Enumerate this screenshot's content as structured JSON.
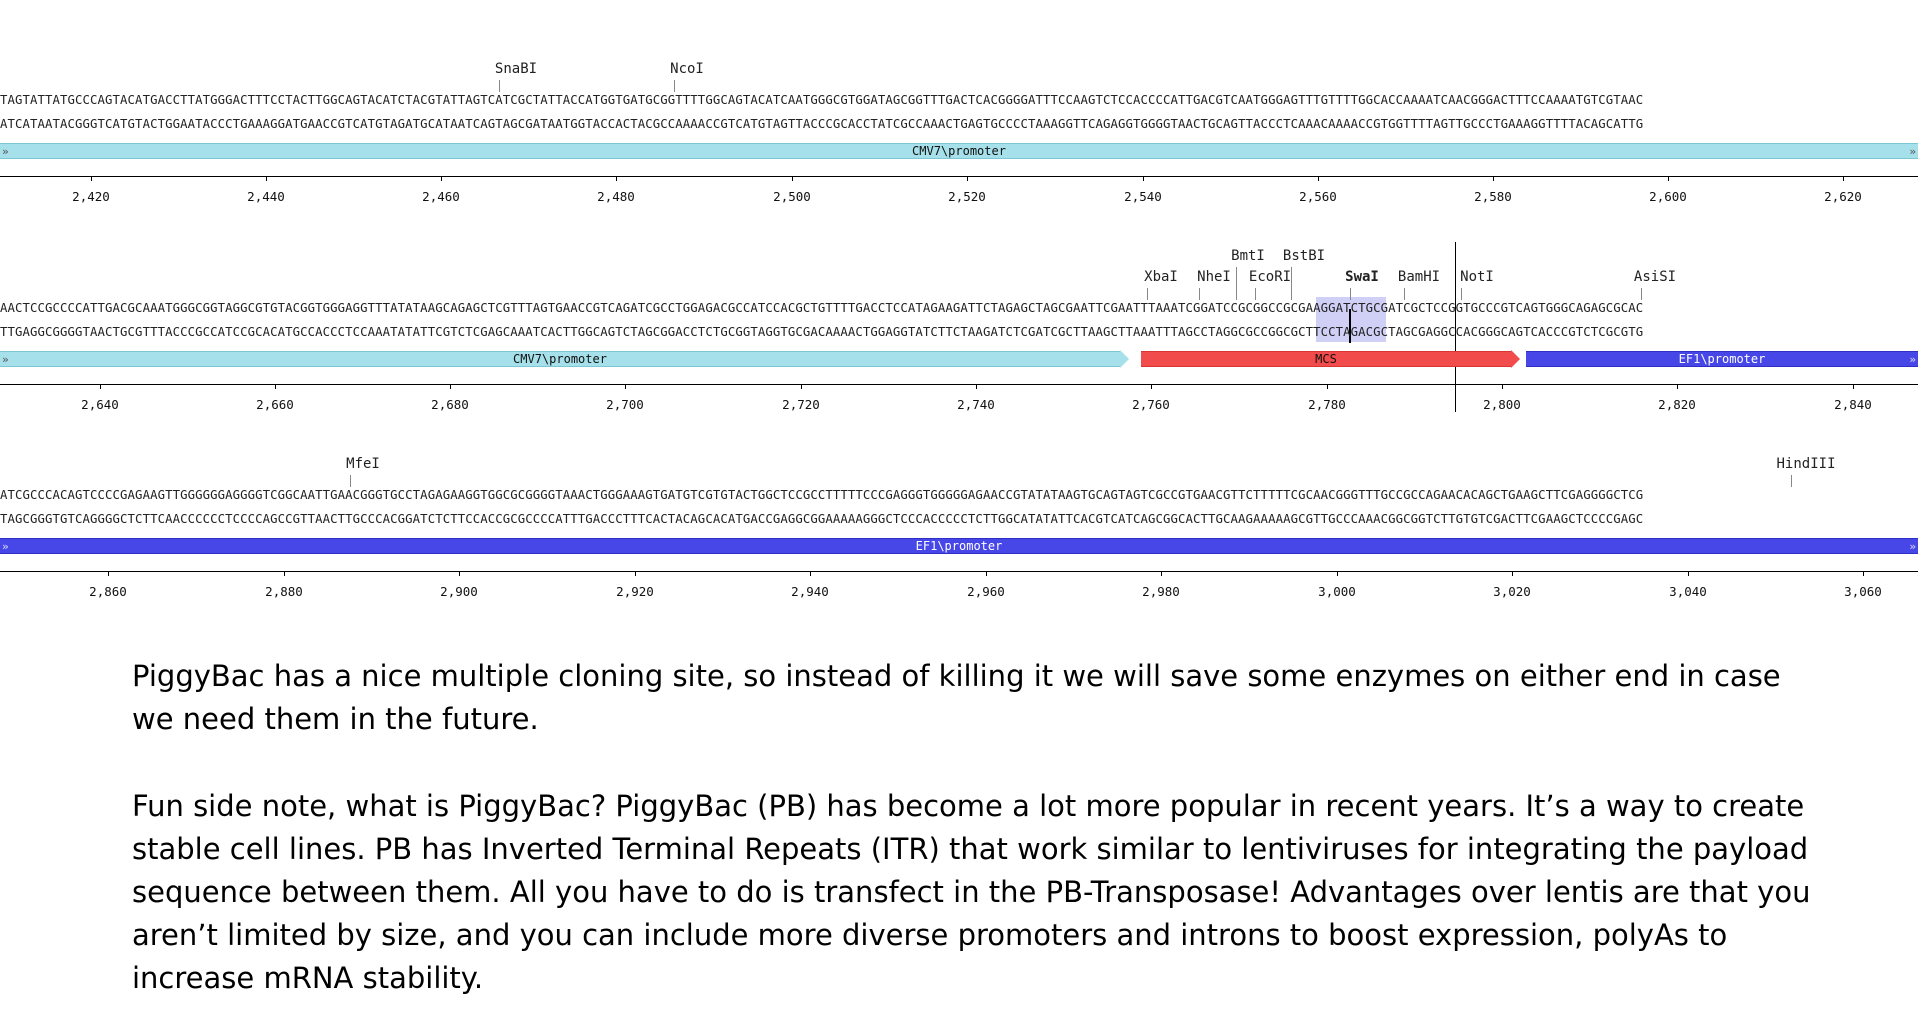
{
  "rows": [
    {
      "enzymes": [
        "SnaBI",
        "NcoI"
      ],
      "top_strand": "TAGTATTATGCCCAGTACATGACCTTATGGGACTTTCCTACTTGGCAGTACATCTACGTATTAGTCATCGCTATTACCATGGTGATGCGGTTTTGGCAGTACATCAATGGGCGTGGATAGCGGTTTGACTCACGGGGATTTCCAAGTCTCCACCCCATTGACGTCAATGGGAGTTTGTTTTGGCACCAAAATCAACGGGACTTTCCAAAATGTCGTAAC",
      "bottom_strand": "ATCATAATACGGGTCATGTACTGGAATACCCTGAAAGGATGAACCGTCATGTAGATGCATAATCAGTAGCGATAATGGTACCACTACGCCAAAACCGTCATGTAGTTACCCGCACCTATCGCCAAACTGAGTGCCCCTAAAGGTTCAGAGGTGGGGTAACTGCAGTTACCCTCAAACAAAACCGTGGTTTTAGTTGCCCTGAAAGGTTTTACAGCATTG",
      "features": [
        "CMV7\\promoter"
      ],
      "ruler": [
        "2,420",
        "2,440",
        "2,460",
        "2,480",
        "2,500",
        "2,520",
        "2,540",
        "2,560",
        "2,580",
        "2,600",
        "2,620"
      ]
    },
    {
      "enzymes": [
        "XbaI",
        "NheI",
        "BmtI",
        "EcoRI",
        "BstBI",
        "SwaI",
        "BamHI",
        "NotI",
        "AsiSI"
      ],
      "top_strand": "AACTCCGCCCCATTGACGCAAATGGGCGGTAGGCGTGTACGGTGGGAGGTTTATATAAGCAGAGCTCGTTTAGTGAACCGTCAGATCGCCTGGAGACGCCATCCACGCTGTTTTGACCTCCATAGAAGATTCTAGAGCTAGCGAATTCGAATTTAAATCGGATCCGCGGCCGCGAAGGATCTGCGATCGCTCCGGTGCCCGTCAGTGGGCAGAGCGCAC",
      "bottom_strand": "TTGAGGCGGGGTAACTGCGTTTACCCGCCATCCGCACATGCCACCCTCCAAATATATTCGTCTCGAGCAAATCACTTGGCAGTCTAGCGGACCTCTGCGGTAGGTGCGACAAAACTGGAGGTATCTTCTAAGATCTCGATCGCTTAAGCTTAAATTTAGCCTAGGCGCCGGCGCTTCCTAGACGCTAGCGAGGCCACGGGCAGTCACCCGTCTCGCGTG",
      "features": [
        "CMV7\\promoter",
        "MCS",
        "EF1\\promoter"
      ],
      "ruler": [
        "2,640",
        "2,660",
        "2,680",
        "2,700",
        "2,720",
        "2,740",
        "2,760",
        "2,780",
        "2,800",
        "2,820",
        "2,840"
      ]
    },
    {
      "enzymes": [
        "MfeI",
        "HindIII"
      ],
      "top_strand": "ATCGCCCACAGTCCCCGAGAAGTTGGGGGGAGGGGTCGGCAATTGAACGGGTGCCTAGAGAAGGTGGCGCGGGGTAAACTGGGAAAGTGATGTCGTGTACTGGCTCCGCCTTTTTCCCGAGGGTGGGGGAGAACCGTATATAAGTGCAGTAGTCGCCGTGAACGTTCTTTTTCGCAACGGGTTTGCCGCCAGAACACAGCTGAAGCTTCGAGGGGCTCG",
      "bottom_strand": "TAGCGGGTGTCAGGGGCTCTTCAACCCCCCTCCCCAGCCGTTAACTTGCCCACGGATCTCTTCCACCGCGCCCCATTTGACCCTTTCACTACAGCACATGACCGAGGCGGAAAAAGGGCTCCCACCCCCTCTTGGCATATATTCACGTCATCAGCGGCACTTGCAAGAAAAAGCGTTGCCCAAACGGCGGTCTTGTGTCGACTTCGAAGCTCCCCGAGC",
      "features": [
        "EF1\\promoter"
      ],
      "ruler": [
        "2,860",
        "2,880",
        "2,900",
        "2,920",
        "2,940",
        "2,960",
        "2,980",
        "3,000",
        "3,020",
        "3,040",
        "3,060"
      ]
    }
  ],
  "caption": {
    "paragraph1": "PiggyBac has a nice multiple cloning site, so instead of killing it we will save some enzymes on either end in case we need them in the future.",
    "paragraph2": "Fun side note, what is PiggyBac? PiggyBac (PB) has become a lot more popular in recent years. It’s a way to create stable cell lines. PB has Inverted Terminal Repeats (ITR) that work similar to lentiviruses for integrating the payload sequence between them. All you have to do is transfect in the PB-Transposase! Advantages over lentis are that you aren’t limited by size, and you can include more diverse promoters and introns to boost expression, polyAs to increase mRNA stability."
  },
  "colors": {
    "cmv_promoter": "#a6e0ea",
    "mcs": "#f24b4b",
    "ef1_promoter": "#4747e8",
    "selection_highlight": "#b9b9f0"
  },
  "icons": {
    "feature_arrow": "double-chevron-icon"
  }
}
